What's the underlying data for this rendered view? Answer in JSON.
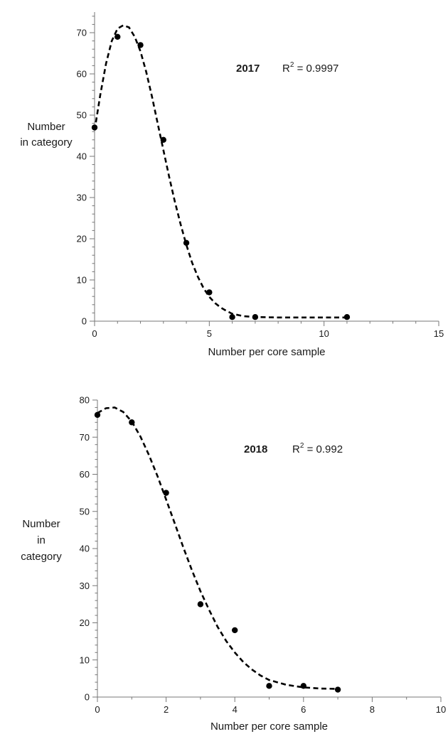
{
  "chart_data": [
    {
      "type": "scatter",
      "xlabel": "Number per core sample",
      "ylabel_lines": [
        "Number",
        "in category"
      ],
      "xlim": [
        0,
        15
      ],
      "ylim": [
        0,
        75
      ],
      "xticks": [
        0,
        5,
        10,
        15
      ],
      "yticks": [
        0,
        10,
        20,
        30,
        40,
        50,
        60,
        70
      ],
      "x_minor_step": 1,
      "y_minor_step": 2,
      "grid": false,
      "annotation": {
        "year": "2017",
        "r_base": "R",
        "r_sup": "2",
        "r_value": " = 0.9997"
      },
      "series": [
        {
          "type": "scatter",
          "x": [
            0,
            1,
            2,
            3,
            4,
            5,
            6,
            7,
            11
          ],
          "y": [
            47,
            69,
            67,
            44,
            19,
            7,
            1,
            1,
            1
          ],
          "marker": "filled-circle",
          "color": "#000000"
        },
        {
          "type": "line",
          "style": "dashed",
          "color": "#000000",
          "x": [
            0,
            0.25,
            0.5,
            0.75,
            1,
            1.25,
            1.5,
            1.75,
            2,
            2.25,
            2.5,
            2.75,
            3,
            3.25,
            3.5,
            3.75,
            4,
            4.25,
            4.5,
            4.75,
            5,
            5.25,
            5.5,
            5.75,
            6,
            6.5,
            7,
            8,
            9,
            10,
            11
          ],
          "y": [
            46.3,
            55,
            62.5,
            68,
            71,
            71.8,
            71.3,
            69,
            65.5,
            60.5,
            54.5,
            48,
            41.5,
            35,
            29,
            23.5,
            18.5,
            14.2,
            10.8,
            8,
            5.9,
            4.4,
            3.3,
            2.5,
            1.8,
            1.2,
            1,
            0.9,
            0.9,
            0.9,
            0.9
          ]
        }
      ]
    },
    {
      "type": "scatter",
      "xlabel": "Number per core sample",
      "ylabel_lines": [
        "Number",
        "in",
        "category"
      ],
      "xlim": [
        0,
        10
      ],
      "ylim": [
        0,
        80
      ],
      "xticks": [
        0,
        2,
        4,
        6,
        8,
        10
      ],
      "yticks": [
        0,
        10,
        20,
        30,
        40,
        50,
        60,
        70,
        80
      ],
      "x_minor_step": 1,
      "y_minor_step": 2,
      "grid": false,
      "annotation": {
        "year": "2018",
        "r_base": "R",
        "r_sup": "2",
        "r_value": " = 0.992"
      },
      "series": [
        {
          "type": "scatter",
          "x": [
            0,
            1,
            2,
            3,
            4,
            5,
            6,
            7
          ],
          "y": [
            76,
            74,
            55,
            25,
            18,
            3,
            3,
            2
          ],
          "marker": "filled-circle",
          "color": "#000000"
        },
        {
          "type": "line",
          "style": "dashed",
          "color": "#000000",
          "x": [
            0,
            0.25,
            0.5,
            0.75,
            1,
            1.25,
            1.5,
            1.75,
            2,
            2.25,
            2.5,
            2.75,
            3,
            3.25,
            3.5,
            3.75,
            4,
            4.25,
            4.5,
            4.75,
            5,
            5.5,
            6,
            6.5,
            7
          ],
          "y": [
            76.5,
            77.8,
            78,
            76.8,
            74.2,
            70.2,
            65.2,
            59.5,
            53.2,
            46.8,
            40.3,
            34.2,
            28.5,
            23.5,
            18.9,
            15.1,
            12,
            9.4,
            7.4,
            5.8,
            4.6,
            3.3,
            2.6,
            2.3,
            2.2
          ]
        }
      ]
    }
  ]
}
